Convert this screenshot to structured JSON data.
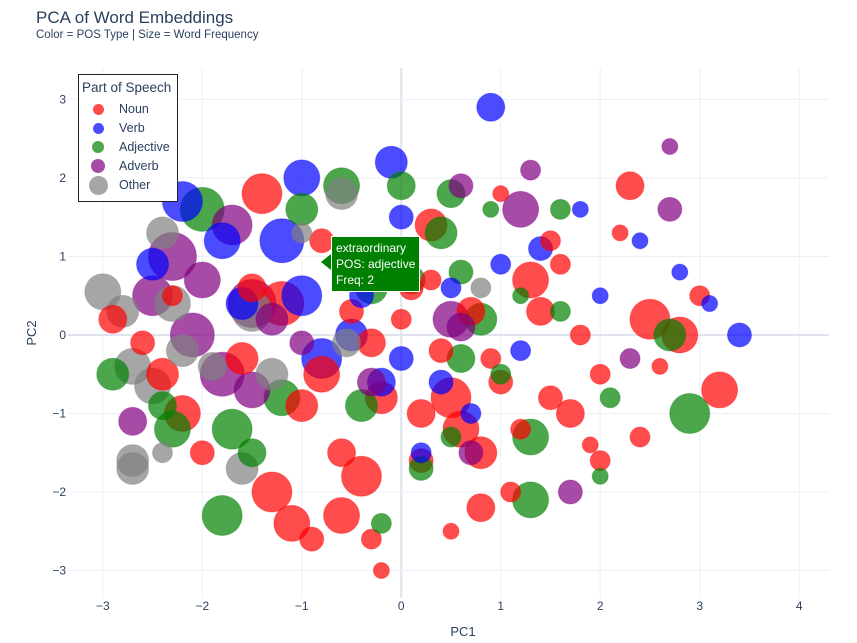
{
  "title": "PCA of Word Embeddings",
  "subtitle": "Color = POS Type | Size = Word Frequency",
  "chart_data": {
    "type": "scatter",
    "xlabel": "PC1",
    "ylabel": "PC2",
    "xlim": [
      -3.35,
      4.3
    ],
    "ylim": [
      -3.35,
      3.4
    ],
    "xticks": [
      -3,
      -2,
      -1,
      0,
      1,
      2,
      3,
      4
    ],
    "yticks": [
      -3,
      -2,
      -1,
      0,
      1,
      2,
      3
    ],
    "grid": true,
    "legend": {
      "title": "Part of Speech",
      "placement": "top-left",
      "entries": [
        {
          "name": "Noun",
          "color": "#ff0000"
        },
        {
          "name": "Verb",
          "color": "#0000ff"
        },
        {
          "name": "Adjective",
          "color": "#008000"
        },
        {
          "name": "Adverb",
          "color": "#800080"
        },
        {
          "name": "Other",
          "color": "#808080"
        }
      ]
    },
    "series": [
      {
        "name": "Noun",
        "color": "#ff0000",
        "points": [
          [
            -2.9,
            0.2,
            14
          ],
          [
            -2.4,
            -0.5,
            16
          ],
          [
            -1.4,
            1.8,
            20
          ],
          [
            -1.2,
            0.4,
            22
          ],
          [
            -1.3,
            -2.0,
            20
          ],
          [
            -1.1,
            -2.4,
            18
          ],
          [
            -0.6,
            -2.3,
            18
          ],
          [
            -0.4,
            -1.8,
            20
          ],
          [
            -0.2,
            -0.8,
            16
          ],
          [
            -0.2,
            -3.0,
            8
          ],
          [
            0.2,
            -1.0,
            14
          ],
          [
            0.5,
            -0.8,
            20
          ],
          [
            0.6,
            -1.2,
            18
          ],
          [
            0.8,
            -1.5,
            16
          ],
          [
            1.0,
            -0.6,
            12
          ],
          [
            1.2,
            -1.2,
            10
          ],
          [
            1.5,
            -0.8,
            12
          ],
          [
            1.7,
            -1.0,
            14
          ],
          [
            2.0,
            -0.5,
            10
          ],
          [
            2.3,
            1.9,
            14
          ],
          [
            1.4,
            0.3,
            14
          ],
          [
            1.3,
            0.7,
            18
          ],
          [
            2.5,
            0.2,
            20
          ],
          [
            2.8,
            0.0,
            18
          ],
          [
            3.2,
            -0.7,
            18
          ],
          [
            2.4,
            -1.3,
            10
          ],
          [
            0.8,
            -2.2,
            14
          ],
          [
            0.2,
            -1.6,
            12
          ],
          [
            -0.6,
            -1.5,
            14
          ],
          [
            -0.5,
            0.3,
            12
          ],
          [
            0.1,
            0.6,
            12
          ],
          [
            0.3,
            1.4,
            16
          ],
          [
            0.0,
            0.2,
            10
          ],
          [
            -0.8,
            -0.5,
            18
          ],
          [
            -1.6,
            -0.3,
            16
          ],
          [
            -2.2,
            -1.0,
            18
          ],
          [
            -2.0,
            -1.5,
            12
          ],
          [
            -0.8,
            1.2,
            12
          ],
          [
            0.4,
            -0.2,
            12
          ],
          [
            1.6,
            0.9,
            10
          ],
          [
            2.2,
            1.3,
            8
          ],
          [
            3.0,
            0.5,
            10
          ],
          [
            2.0,
            -1.6,
            10
          ],
          [
            1.1,
            -2.0,
            10
          ],
          [
            -0.3,
            -2.6,
            10
          ],
          [
            -0.9,
            -2.6,
            12
          ],
          [
            0.7,
            0.3,
            14
          ],
          [
            1.8,
            0.0,
            10
          ],
          [
            1.0,
            1.8,
            8
          ],
          [
            1.5,
            1.2,
            10
          ],
          [
            -1.0,
            -0.9,
            16
          ],
          [
            -0.3,
            -0.1,
            14
          ],
          [
            0.9,
            -0.3,
            10
          ],
          [
            2.6,
            -0.4,
            8
          ],
          [
            1.9,
            -1.4,
            8
          ],
          [
            0.5,
            -2.5,
            8
          ],
          [
            -1.5,
            0.6,
            14
          ],
          [
            -2.6,
            -0.1,
            12
          ],
          [
            -2.3,
            0.5,
            10
          ],
          [
            0.3,
            0.7,
            10
          ]
        ]
      },
      {
        "name": "Verb",
        "color": "#0000ff",
        "points": [
          [
            -2.2,
            1.7,
            20
          ],
          [
            -1.0,
            2.0,
            18
          ],
          [
            -1.8,
            1.2,
            18
          ],
          [
            -1.2,
            1.2,
            22
          ],
          [
            -1.0,
            0.5,
            20
          ],
          [
            -0.8,
            -0.3,
            20
          ],
          [
            -0.5,
            0.0,
            16
          ],
          [
            -0.2,
            -0.6,
            14
          ],
          [
            0.0,
            -0.3,
            12
          ],
          [
            -0.1,
            2.2,
            16
          ],
          [
            0.9,
            2.9,
            14
          ],
          [
            1.4,
            1.1,
            12
          ],
          [
            3.4,
            0.0,
            12
          ],
          [
            0.7,
            -1.0,
            10
          ],
          [
            0.4,
            -0.6,
            12
          ],
          [
            -1.6,
            0.4,
            16
          ],
          [
            -2.5,
            0.9,
            16
          ],
          [
            0.0,
            1.5,
            12
          ],
          [
            0.2,
            -1.5,
            10
          ],
          [
            1.2,
            -0.2,
            10
          ],
          [
            2.4,
            1.2,
            8
          ],
          [
            2.0,
            0.5,
            8
          ],
          [
            -0.4,
            0.5,
            12
          ],
          [
            1.8,
            1.6,
            8
          ],
          [
            0.5,
            0.6,
            10
          ],
          [
            2.8,
            0.8,
            8
          ],
          [
            3.1,
            0.4,
            8
          ],
          [
            1.0,
            0.9,
            10
          ]
        ]
      },
      {
        "name": "Adjective",
        "color": "#008000",
        "points": [
          [
            -2.9,
            -0.5,
            16
          ],
          [
            -2.0,
            1.6,
            22
          ],
          [
            -2.3,
            -1.2,
            18
          ],
          [
            -1.7,
            -1.2,
            20
          ],
          [
            -1.8,
            -2.3,
            20
          ],
          [
            -0.6,
            1.9,
            18
          ],
          [
            0.0,
            1.9,
            14
          ],
          [
            0.4,
            1.3,
            16
          ],
          [
            0.5,
            1.8,
            14
          ],
          [
            0.6,
            -0.3,
            14
          ],
          [
            1.3,
            -1.3,
            18
          ],
          [
            1.3,
            -2.1,
            18
          ],
          [
            2.9,
            -1.0,
            20
          ],
          [
            2.7,
            0.0,
            16
          ],
          [
            -0.3,
            0.6,
            16
          ],
          [
            0.1,
            0.7,
            14
          ],
          [
            -0.4,
            -0.9,
            16
          ],
          [
            0.2,
            -1.7,
            12
          ],
          [
            -1.2,
            -0.8,
            18
          ],
          [
            -1.0,
            1.6,
            16
          ],
          [
            0.8,
            0.2,
            16
          ],
          [
            1.6,
            1.6,
            10
          ],
          [
            2.1,
            -0.8,
            10
          ],
          [
            1.0,
            -0.5,
            10
          ],
          [
            1.6,
            0.3,
            10
          ],
          [
            0.6,
            0.8,
            12
          ],
          [
            -0.2,
            -2.4,
            10
          ],
          [
            2.0,
            -1.8,
            8
          ],
          [
            -2.4,
            -0.9,
            14
          ],
          [
            -1.5,
            -1.5,
            14
          ],
          [
            0.5,
            -1.3,
            10
          ],
          [
            1.2,
            0.5,
            8
          ],
          [
            0.9,
            1.6,
            8
          ]
        ]
      },
      {
        "name": "Adverb",
        "color": "#800080",
        "points": [
          [
            -2.3,
            1.0,
            24
          ],
          [
            -1.5,
            0.4,
            24
          ],
          [
            -2.1,
            0.0,
            22
          ],
          [
            -1.8,
            -0.5,
            22
          ],
          [
            -1.5,
            -0.7,
            18
          ],
          [
            -2.7,
            -1.1,
            14
          ],
          [
            -2.5,
            0.5,
            20
          ],
          [
            -1.7,
            1.4,
            20
          ],
          [
            -0.3,
            -0.6,
            14
          ],
          [
            0.5,
            0.2,
            18
          ],
          [
            0.6,
            0.1,
            14
          ],
          [
            0.6,
            1.9,
            12
          ],
          [
            1.2,
            1.6,
            18
          ],
          [
            1.3,
            2.1,
            10
          ],
          [
            2.7,
            2.4,
            8
          ],
          [
            2.7,
            1.6,
            12
          ],
          [
            1.7,
            -2.0,
            12
          ],
          [
            0.7,
            -1.5,
            12
          ],
          [
            -1.3,
            0.2,
            16
          ],
          [
            -2.0,
            0.7,
            18
          ],
          [
            -1.0,
            -0.1,
            12
          ],
          [
            2.3,
            -0.3,
            10
          ]
        ]
      },
      {
        "name": "Other",
        "color": "#808080",
        "points": [
          [
            -3.0,
            0.55,
            18
          ],
          [
            -2.8,
            0.3,
            16
          ],
          [
            -2.7,
            -0.4,
            18
          ],
          [
            -2.5,
            -0.65,
            18
          ],
          [
            -2.3,
            0.4,
            18
          ],
          [
            -1.5,
            0.3,
            20
          ],
          [
            -1.3,
            -0.5,
            16
          ],
          [
            -2.2,
            -0.2,
            16
          ],
          [
            -2.7,
            -1.6,
            16
          ],
          [
            -2.7,
            -1.7,
            16
          ],
          [
            -1.6,
            -1.7,
            16
          ],
          [
            -0.6,
            1.8,
            16
          ],
          [
            -1.9,
            -0.4,
            14
          ],
          [
            -2.4,
            1.3,
            16
          ],
          [
            -0.55,
            -0.1,
            14
          ],
          [
            0.8,
            0.6,
            10
          ],
          [
            -2.4,
            -1.5,
            10
          ],
          [
            -1.0,
            1.3,
            10
          ]
        ]
      }
    ],
    "tooltip": {
      "word": "extraordinary",
      "pos": "POS: adjective",
      "freq": "Freq: 2"
    }
  }
}
